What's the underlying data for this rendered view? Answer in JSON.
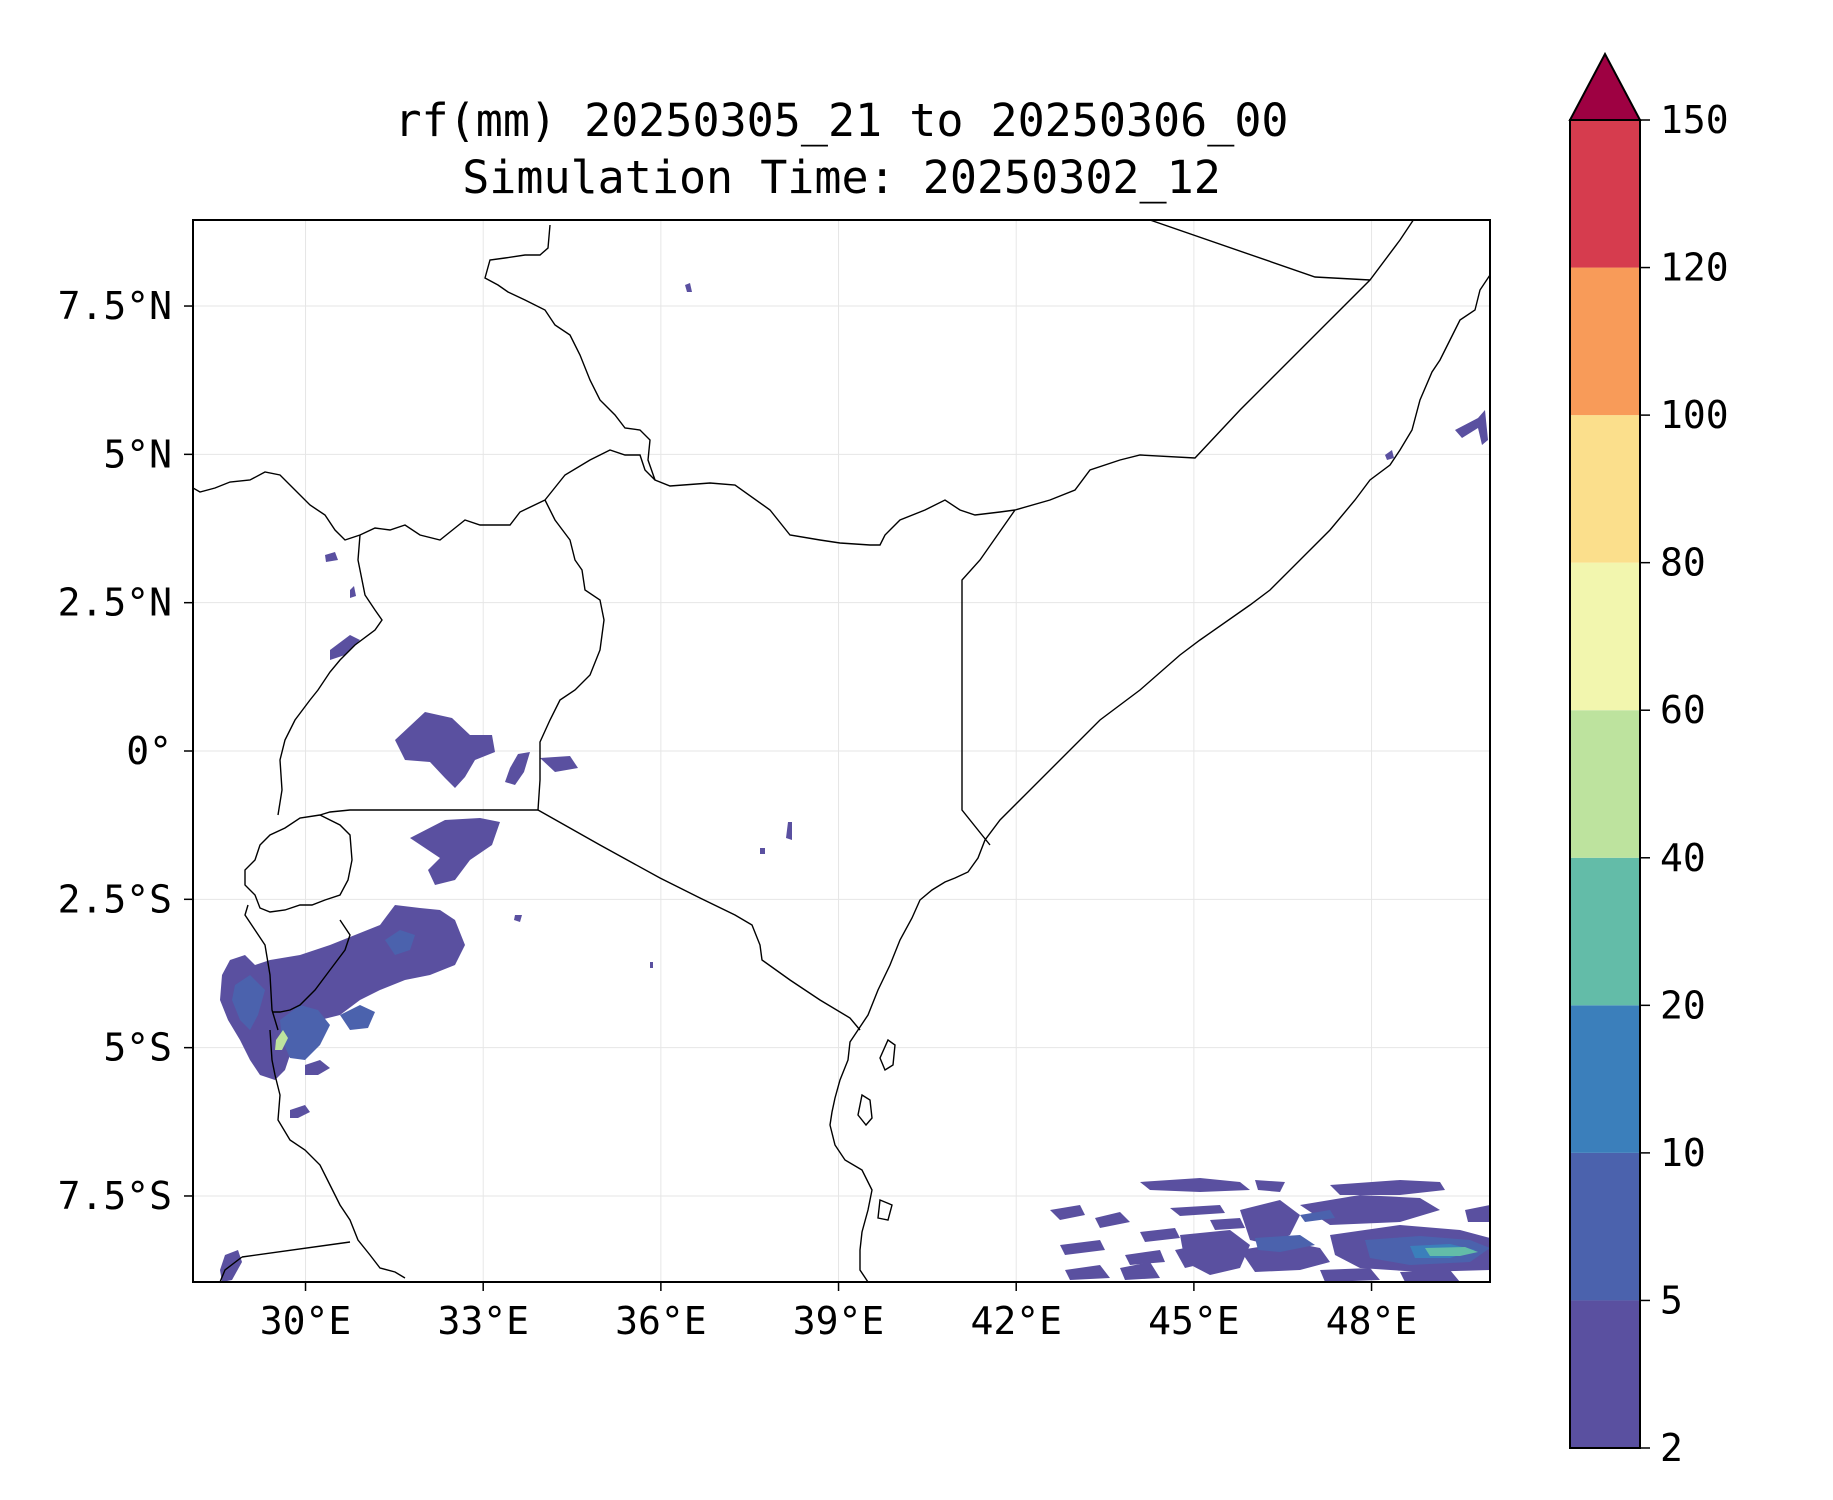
{
  "title": {
    "line1": "rf(mm) 20250305_21 to 20250306_00",
    "line2": "Simulation Time: 20250302_12"
  },
  "map": {
    "lon_range": [
      28.1,
      50
    ],
    "lat_range": [
      -8.95,
      8.95
    ],
    "x_ticks": [
      "30°E",
      "33°E",
      "36°E",
      "39°E",
      "42°E",
      "45°E",
      "48°E"
    ],
    "x_tick_values": [
      30,
      33,
      36,
      39,
      42,
      45,
      48
    ],
    "y_ticks": [
      "7.5°N",
      "5°N",
      "2.5°N",
      "0°",
      "2.5°S",
      "5°S",
      "7.5°S"
    ],
    "y_tick_values": [
      7.5,
      5,
      2.5,
      0,
      -2.5,
      -5,
      -7.5
    ],
    "gridlines": true
  },
  "colorbar": {
    "levels": [
      "2",
      "5",
      "10",
      "20",
      "40",
      "60",
      "80",
      "100",
      "120",
      "150"
    ],
    "colors": [
      "#5a50a0",
      "#4b62ad",
      "#3b7fbb",
      "#63bca8",
      "#bde39e",
      "#f2f6ae",
      "#fbdf8c",
      "#f89b59",
      "#d63c4e"
    ],
    "extend_color": "#9e0142",
    "extend": "max"
  },
  "rain_colors": {
    "light": "#5a50a0",
    "medium": "#4b62ad",
    "heavy": "#3b7fbb",
    "peak": "#63bca8",
    "max": "#bde39e"
  }
}
